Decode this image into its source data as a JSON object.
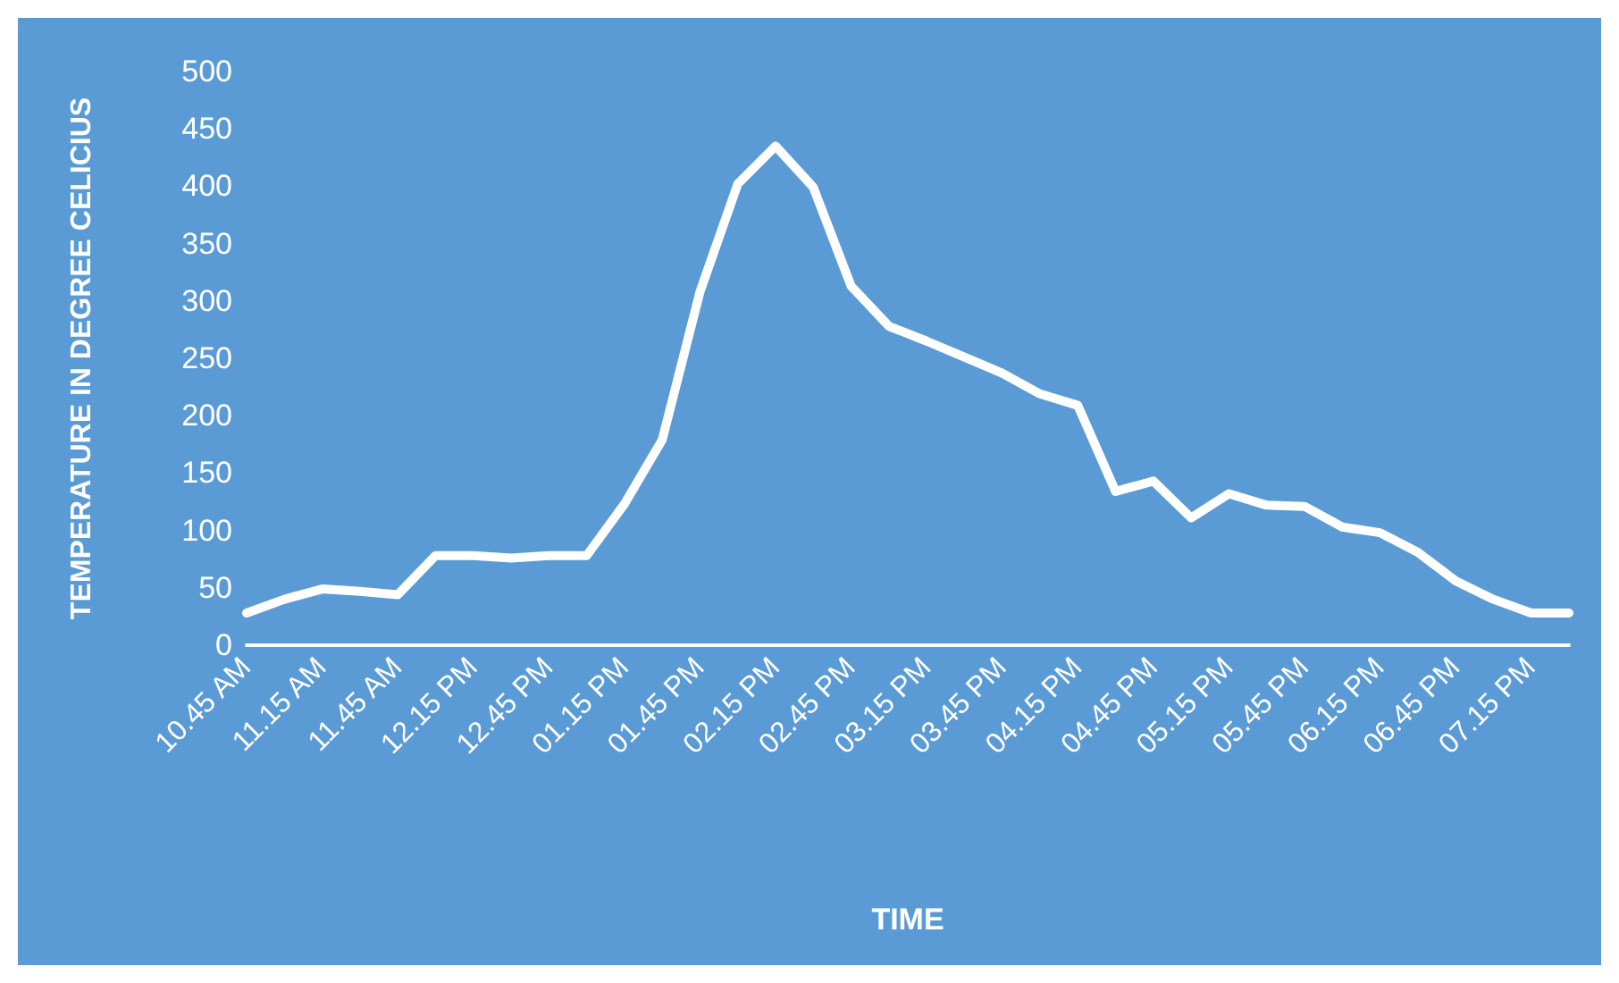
{
  "chart_data": {
    "type": "line",
    "xlabel": "TIME",
    "ylabel": "TEMPERATURE IN DEGREE CELICIUS",
    "categories": [
      "10.45 AM",
      null,
      "11.15 AM",
      null,
      "11.45 AM",
      null,
      "12.15 PM",
      null,
      "12.45 PM",
      null,
      "01.15 PM",
      null,
      "01.45 PM",
      null,
      "02.15 PM",
      null,
      "02.45 PM",
      null,
      "03.15 PM",
      null,
      "03.45 PM",
      null,
      "04.15 PM",
      null,
      "04.45 PM",
      null,
      "05.15 PM",
      null,
      "05.45 PM",
      null,
      "06.15 PM",
      null,
      "06.45 PM",
      null,
      "07.15 PM",
      null
    ],
    "series": [
      {
        "color": "#ffffff",
        "values": [
          28,
          40,
          49,
          47,
          44,
          78,
          78,
          76,
          78,
          78,
          123,
          179,
          308,
          402,
          435,
          399,
          313,
          278,
          265,
          251,
          237,
          219,
          209,
          134,
          143,
          111,
          132,
          122,
          121,
          103,
          98,
          81,
          56,
          40,
          28,
          28
        ]
      }
    ],
    "ylim": [
      0,
      500
    ],
    "yticks": [
      0,
      50,
      100,
      150,
      200,
      250,
      300,
      350,
      400,
      450,
      500
    ],
    "grid": false,
    "marker": "none",
    "line_style": "solid"
  }
}
